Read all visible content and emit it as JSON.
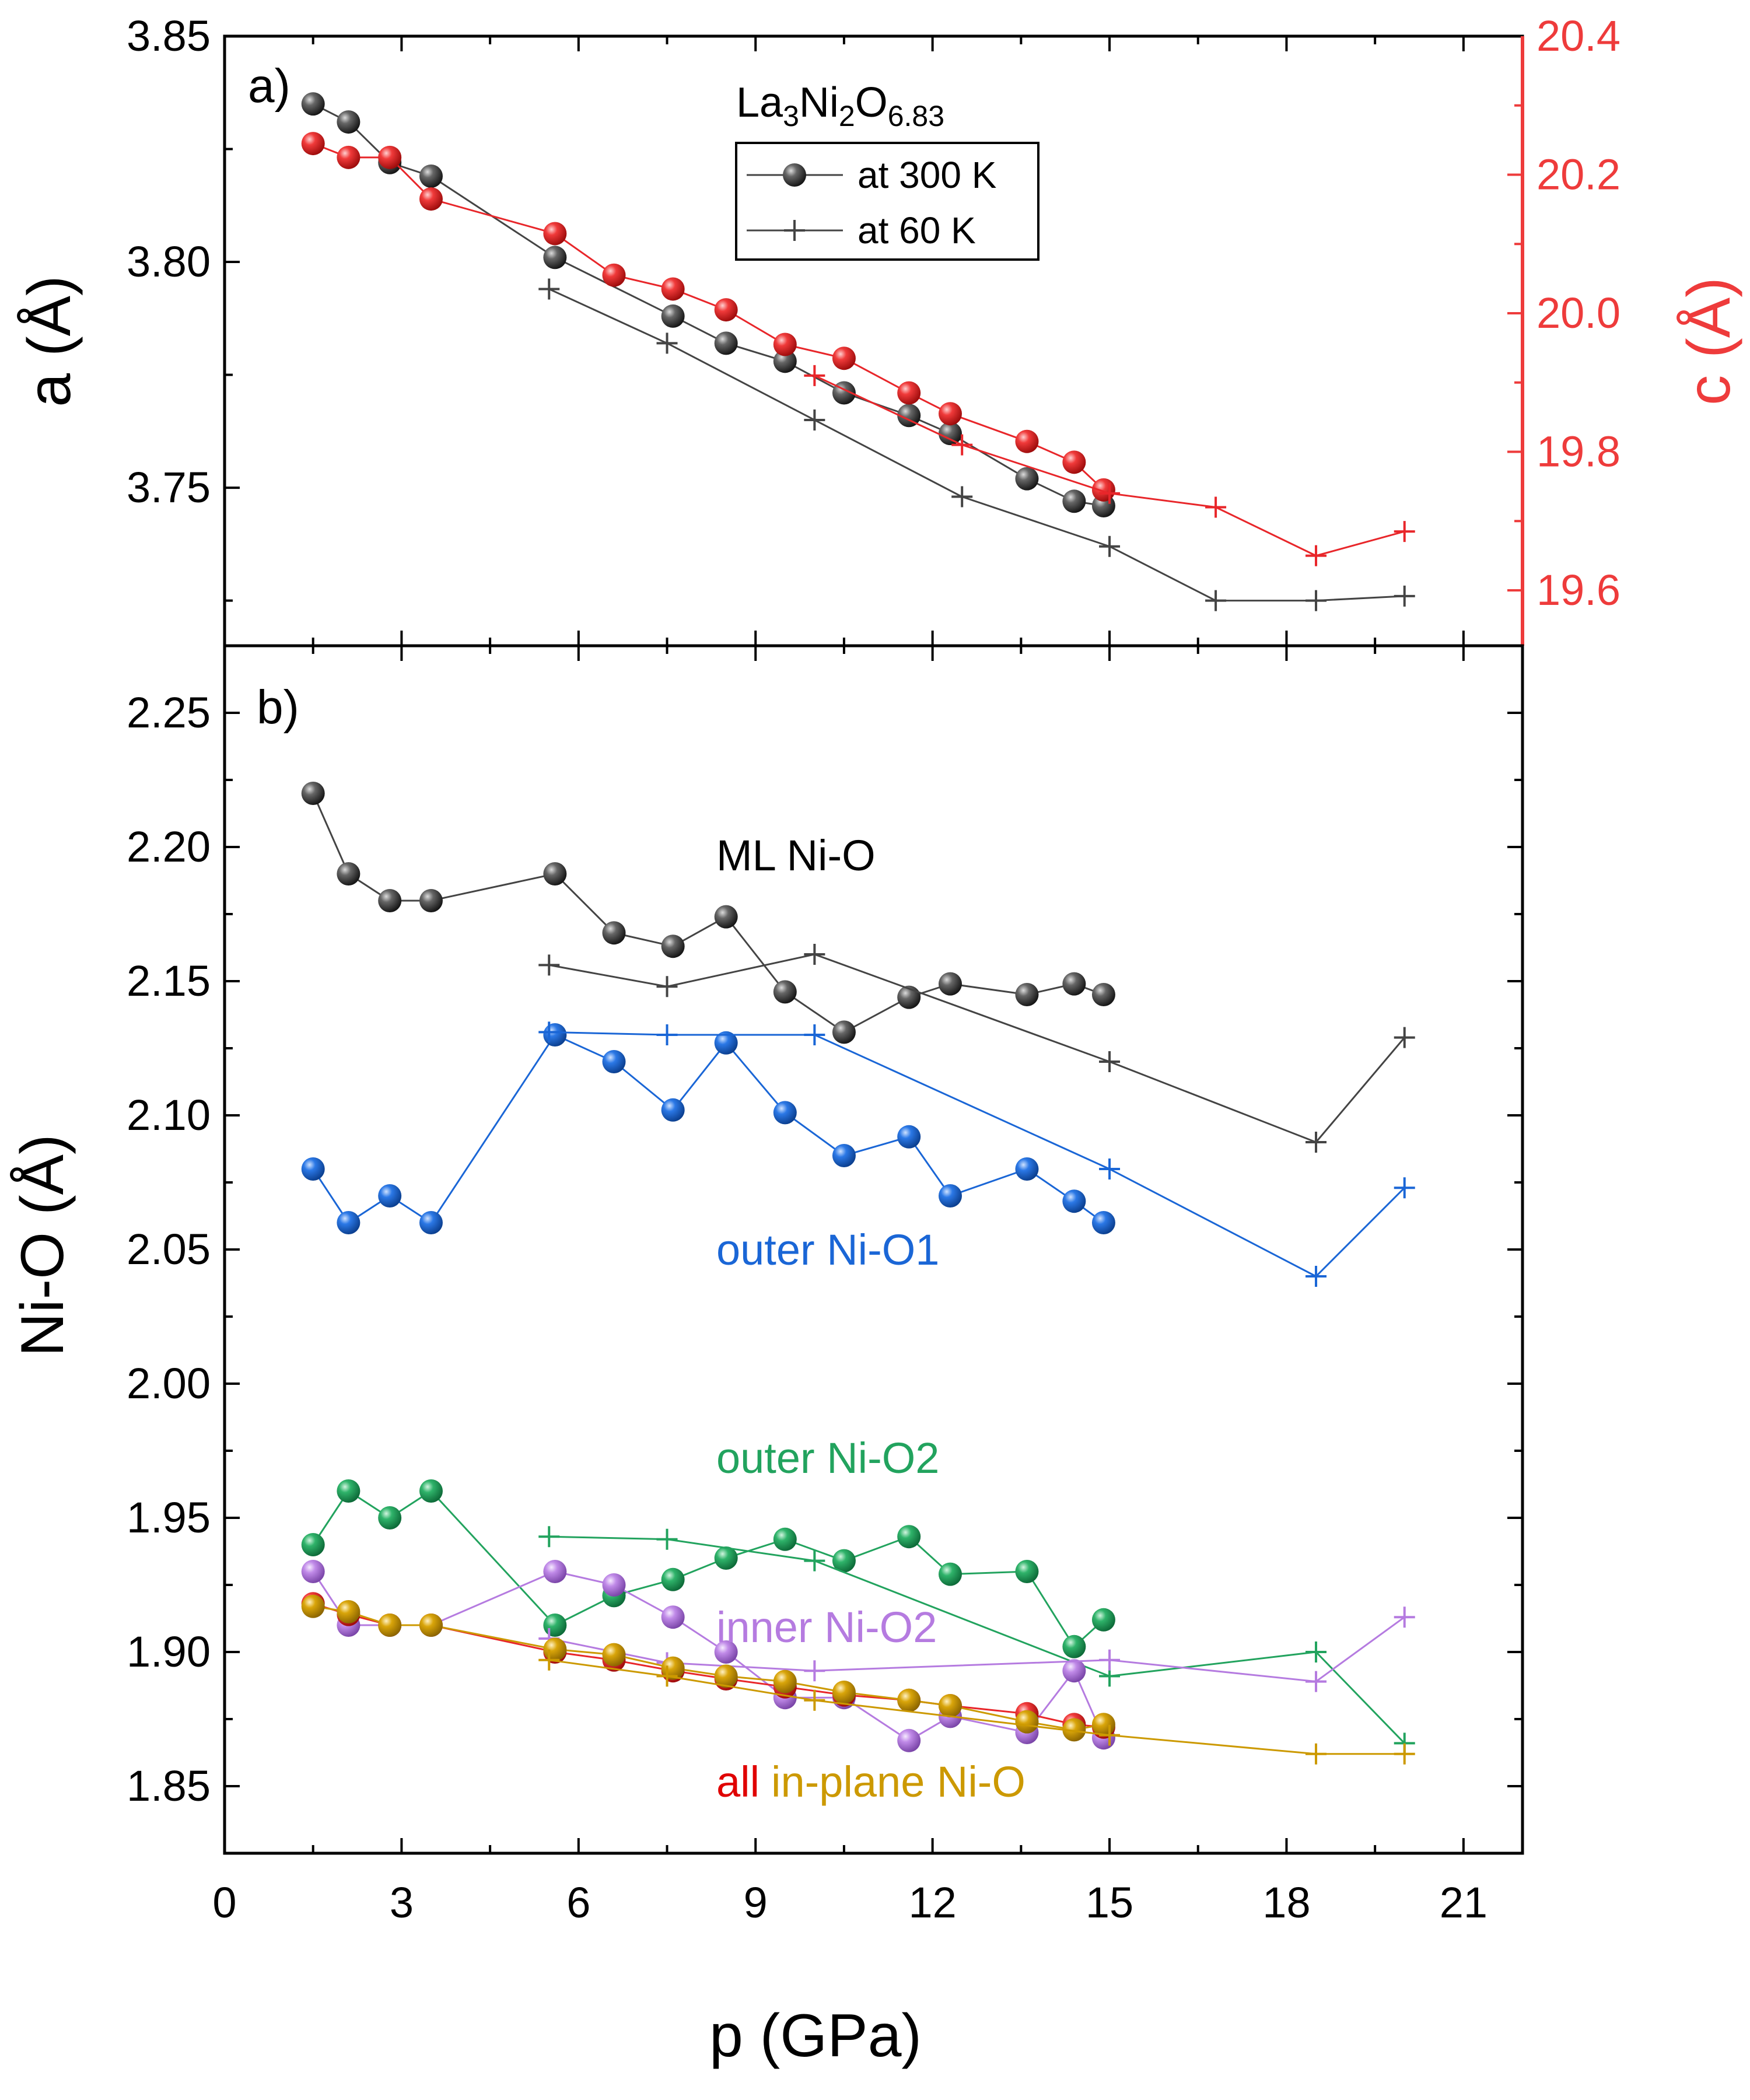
{
  "colors": {
    "axis": "#000000",
    "c_axis": "#ee3b3b",
    "black_series": "#444444",
    "red_series": "#e8262a",
    "blue": "#1a66d6",
    "green": "#22a35e",
    "purple": "#b57be0",
    "gold": "#cc9900",
    "all_red": "#e00000"
  },
  "chart_data": [
    {
      "panel": "a",
      "type": "scatter",
      "panel_label": "a)",
      "title_parts": [
        "La",
        "3",
        "Ni",
        "2",
        "O",
        "6.83"
      ],
      "xlabel": "p (GPa)",
      "ylabel": "a (Å)",
      "ylabel_right": "c (Å)",
      "xlim": [
        0,
        22
      ],
      "ylim": [
        3.715,
        3.85
      ],
      "ylim_right": [
        19.52,
        20.4
      ],
      "yticks": [
        "3.75",
        "3.80",
        "3.85"
      ],
      "yticks_right": [
        "19.6",
        "19.8",
        "20.0",
        "20.2",
        "20.4"
      ],
      "legend": {
        "position": "top-center",
        "entries": [
          "at 300 K",
          "at 60 K"
        ]
      },
      "series": [
        {
          "name": "a at 300 K",
          "axis": "left",
          "marker": "ball",
          "color": "black_series",
          "x": [
            1.5,
            2.1,
            2.8,
            3.5,
            5.6,
            7.6,
            8.5,
            9.5,
            10.5,
            11.6,
            12.3,
            13.6,
            14.4,
            14.9
          ],
          "y": [
            3.835,
            3.831,
            3.822,
            3.819,
            3.801,
            3.788,
            3.782,
            3.778,
            3.771,
            3.766,
            3.762,
            3.752,
            3.747,
            3.746
          ]
        },
        {
          "name": "a at 60 K",
          "axis": "left",
          "marker": "plus",
          "color": "black_series",
          "x": [
            5.5,
            7.5,
            10,
            12.5,
            15,
            16.8,
            18.5,
            20
          ],
          "y": [
            3.794,
            3.782,
            3.765,
            3.748,
            3.737,
            3.725,
            3.725,
            3.726
          ]
        },
        {
          "name": "c at 300 K",
          "axis": "right",
          "marker": "ball",
          "color": "red_series",
          "x": [
            1.5,
            2.1,
            2.8,
            3.5,
            5.6,
            6.6,
            7.6,
            8.5,
            9.5,
            10.5,
            11.6,
            12.3,
            13.6,
            14.4,
            14.9
          ],
          "y": [
            20.245,
            20.225,
            20.225,
            20.165,
            20.115,
            20.055,
            20.035,
            20.005,
            19.955,
            19.935,
            19.885,
            19.855,
            19.815,
            19.785,
            19.745
          ]
        },
        {
          "name": "c at 60 K",
          "axis": "right",
          "marker": "plus",
          "color": "red_series",
          "x": [
            10,
            12.5,
            15,
            16.8,
            18.5,
            20
          ],
          "y": [
            19.91,
            19.81,
            19.74,
            19.72,
            19.65,
            19.685
          ]
        }
      ]
    },
    {
      "panel": "b",
      "type": "scatter",
      "panel_label": "b)",
      "xlabel": "p (GPa)",
      "ylabel": "Ni-O (Å)",
      "xlim": [
        0,
        22
      ],
      "ylim": [
        1.825,
        2.275
      ],
      "xticks": [
        "0",
        "3",
        "6",
        "9",
        "12",
        "15",
        "18",
        "21"
      ],
      "yticks": [
        "1.85",
        "1.90",
        "1.95",
        "2.00",
        "2.05",
        "2.10",
        "2.15",
        "2.20",
        "2.25"
      ],
      "annotations": {
        "ml": "ML Ni-O",
        "outer_o1": "outer Ni-O1",
        "outer_o2": "outer Ni-O2",
        "inner_o2": "inner Ni-O2",
        "all_word": "all",
        "in_plane": "in-plane Ni-O"
      },
      "series": [
        {
          "name": "ML Ni-O 300 K",
          "marker": "ball",
          "color": "black_series",
          "x": [
            1.5,
            2.1,
            2.8,
            3.5,
            5.6,
            6.6,
            7.6,
            8.5,
            9.5,
            10.5,
            11.6,
            12.3,
            13.6,
            14.4,
            14.9
          ],
          "y": [
            2.22,
            2.19,
            2.18,
            2.18,
            2.19,
            2.168,
            2.163,
            2.174,
            2.146,
            2.131,
            2.144,
            2.149,
            2.145,
            2.149,
            2.145
          ]
        },
        {
          "name": "ML Ni-O 60 K",
          "marker": "plus",
          "color": "black_series",
          "x": [
            5.5,
            7.5,
            10,
            15,
            18.5,
            20
          ],
          "y": [
            2.156,
            2.148,
            2.16,
            2.12,
            2.09,
            2.129
          ]
        },
        {
          "name": "outer Ni-O1 300 K",
          "marker": "ball",
          "color": "blue",
          "x": [
            1.5,
            2.1,
            2.8,
            3.5,
            5.6,
            6.6,
            7.6,
            8.5,
            9.5,
            10.5,
            11.6,
            12.3,
            13.6,
            14.4,
            14.9
          ],
          "y": [
            2.08,
            2.06,
            2.07,
            2.06,
            2.13,
            2.12,
            2.102,
            2.127,
            2.101,
            2.085,
            2.092,
            2.07,
            2.08,
            2.068,
            2.06
          ]
        },
        {
          "name": "outer Ni-O1 60 K",
          "marker": "plus",
          "color": "blue",
          "x": [
            5.5,
            7.5,
            10,
            15,
            18.5,
            20
          ],
          "y": [
            2.131,
            2.13,
            2.13,
            2.08,
            2.04,
            2.073
          ]
        },
        {
          "name": "outer Ni-O2 300 K",
          "marker": "ball",
          "color": "green",
          "x": [
            1.5,
            2.1,
            2.8,
            3.5,
            5.6,
            6.6,
            7.6,
            8.5,
            9.5,
            10.5,
            11.6,
            12.3,
            13.6,
            14.4,
            14.9
          ],
          "y": [
            1.94,
            1.96,
            1.95,
            1.96,
            1.91,
            1.921,
            1.927,
            1.935,
            1.942,
            1.934,
            1.943,
            1.929,
            1.93,
            1.902,
            1.912
          ]
        },
        {
          "name": "outer Ni-O2 60 K",
          "marker": "plus",
          "color": "green",
          "x": [
            5.5,
            7.5,
            10,
            15,
            18.5,
            20
          ],
          "y": [
            1.943,
            1.942,
            1.934,
            1.891,
            1.9,
            1.866
          ]
        },
        {
          "name": "inner Ni-O2 300 K",
          "marker": "ball",
          "color": "purple",
          "x": [
            1.5,
            2.1,
            2.8,
            3.5,
            5.6,
            6.6,
            7.6,
            8.5,
            9.5,
            10.5,
            11.6,
            12.3,
            13.6,
            14.4,
            14.9
          ],
          "y": [
            1.93,
            1.91,
            1.91,
            1.91,
            1.93,
            1.925,
            1.913,
            1.9,
            1.883,
            1.883,
            1.867,
            1.876,
            1.87,
            1.893,
            1.868
          ]
        },
        {
          "name": "inner Ni-O2 60 K",
          "marker": "plus",
          "color": "purple",
          "x": [
            5.5,
            7.5,
            10,
            15,
            18.5,
            20
          ],
          "y": [
            1.905,
            1.896,
            1.893,
            1.897,
            1.889,
            1.913
          ]
        },
        {
          "name": "all in-plane Ni-O 300 K",
          "marker": "ball",
          "color": "red_series",
          "x": [
            1.5,
            2.1,
            2.8,
            3.5,
            5.6,
            6.6,
            7.6,
            8.5,
            9.5,
            10.5,
            11.6,
            12.3,
            13.6,
            14.4,
            14.9
          ],
          "y": [
            1.918,
            1.914,
            1.91,
            1.91,
            1.9,
            1.897,
            1.893,
            1.89,
            1.887,
            1.884,
            1.882,
            1.88,
            1.877,
            1.873,
            1.872
          ]
        },
        {
          "name": "in-plane Ni-O 300 K",
          "marker": "ball",
          "color": "gold",
          "x": [
            1.5,
            2.1,
            2.8,
            3.5,
            5.6,
            6.6,
            7.6,
            8.5,
            9.5,
            10.5,
            11.6,
            12.3,
            13.6,
            14.4,
            14.9
          ],
          "y": [
            1.917,
            1.915,
            1.91,
            1.91,
            1.901,
            1.899,
            1.894,
            1.891,
            1.889,
            1.885,
            1.882,
            1.88,
            1.874,
            1.871,
            1.873
          ]
        },
        {
          "name": "in-plane Ni-O 60 K",
          "marker": "plus",
          "color": "gold",
          "x": [
            5.5,
            7.5,
            10,
            15,
            18.5,
            20
          ],
          "y": [
            1.897,
            1.891,
            1.882,
            1.869,
            1.862,
            1.862
          ]
        }
      ]
    }
  ]
}
